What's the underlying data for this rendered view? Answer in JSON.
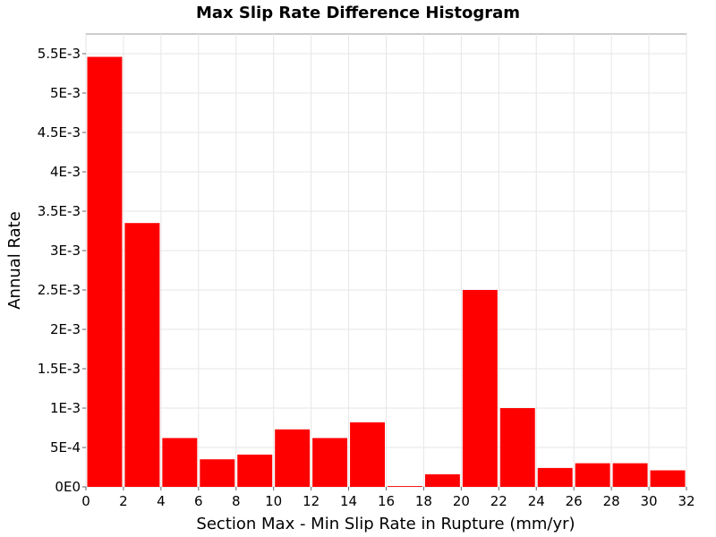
{
  "chart_data": {
    "type": "bar",
    "title": "Max Slip Rate Difference Histogram",
    "xlabel": "Section Max - Min Slip Rate in Rupture (mm/yr)",
    "ylabel": "Annual Rate",
    "xlim": [
      0,
      32
    ],
    "ylim": [
      0,
      0.00575
    ],
    "bin_width": 2,
    "grid": true,
    "bar_color": "#ff0000",
    "x_ticks": [
      0,
      2,
      4,
      6,
      8,
      10,
      12,
      14,
      16,
      18,
      20,
      22,
      24,
      26,
      28,
      30,
      32
    ],
    "x_tick_labels": [
      "0",
      "2",
      "4",
      "6",
      "8",
      "10",
      "12",
      "14",
      "16",
      "18",
      "20",
      "22",
      "24",
      "26",
      "28",
      "30",
      "32"
    ],
    "y_ticks": [
      0,
      0.0005,
      0.001,
      0.0015,
      0.002,
      0.0025,
      0.003,
      0.0035,
      0.004,
      0.0045,
      0.005,
      0.0055
    ],
    "y_tick_labels": [
      "0E0",
      "5E-4",
      "1E-3",
      "1.5E-3",
      "2E-3",
      "2.5E-3",
      "3E-3",
      "3.5E-3",
      "4E-3",
      "4.5E-3",
      "5E-3",
      "5.5E-3"
    ],
    "bin_starts": [
      0,
      2,
      4,
      6,
      8,
      10,
      12,
      14,
      16,
      18,
      20,
      22,
      24,
      26,
      28,
      30
    ],
    "values": [
      0.00546,
      0.00335,
      0.00062,
      0.00035,
      0.00041,
      0.00073,
      0.00062,
      0.00082,
      1e-05,
      0.00016,
      0.0025,
      0.001,
      0.00024,
      0.0003,
      0.0003,
      0.00021
    ]
  }
}
